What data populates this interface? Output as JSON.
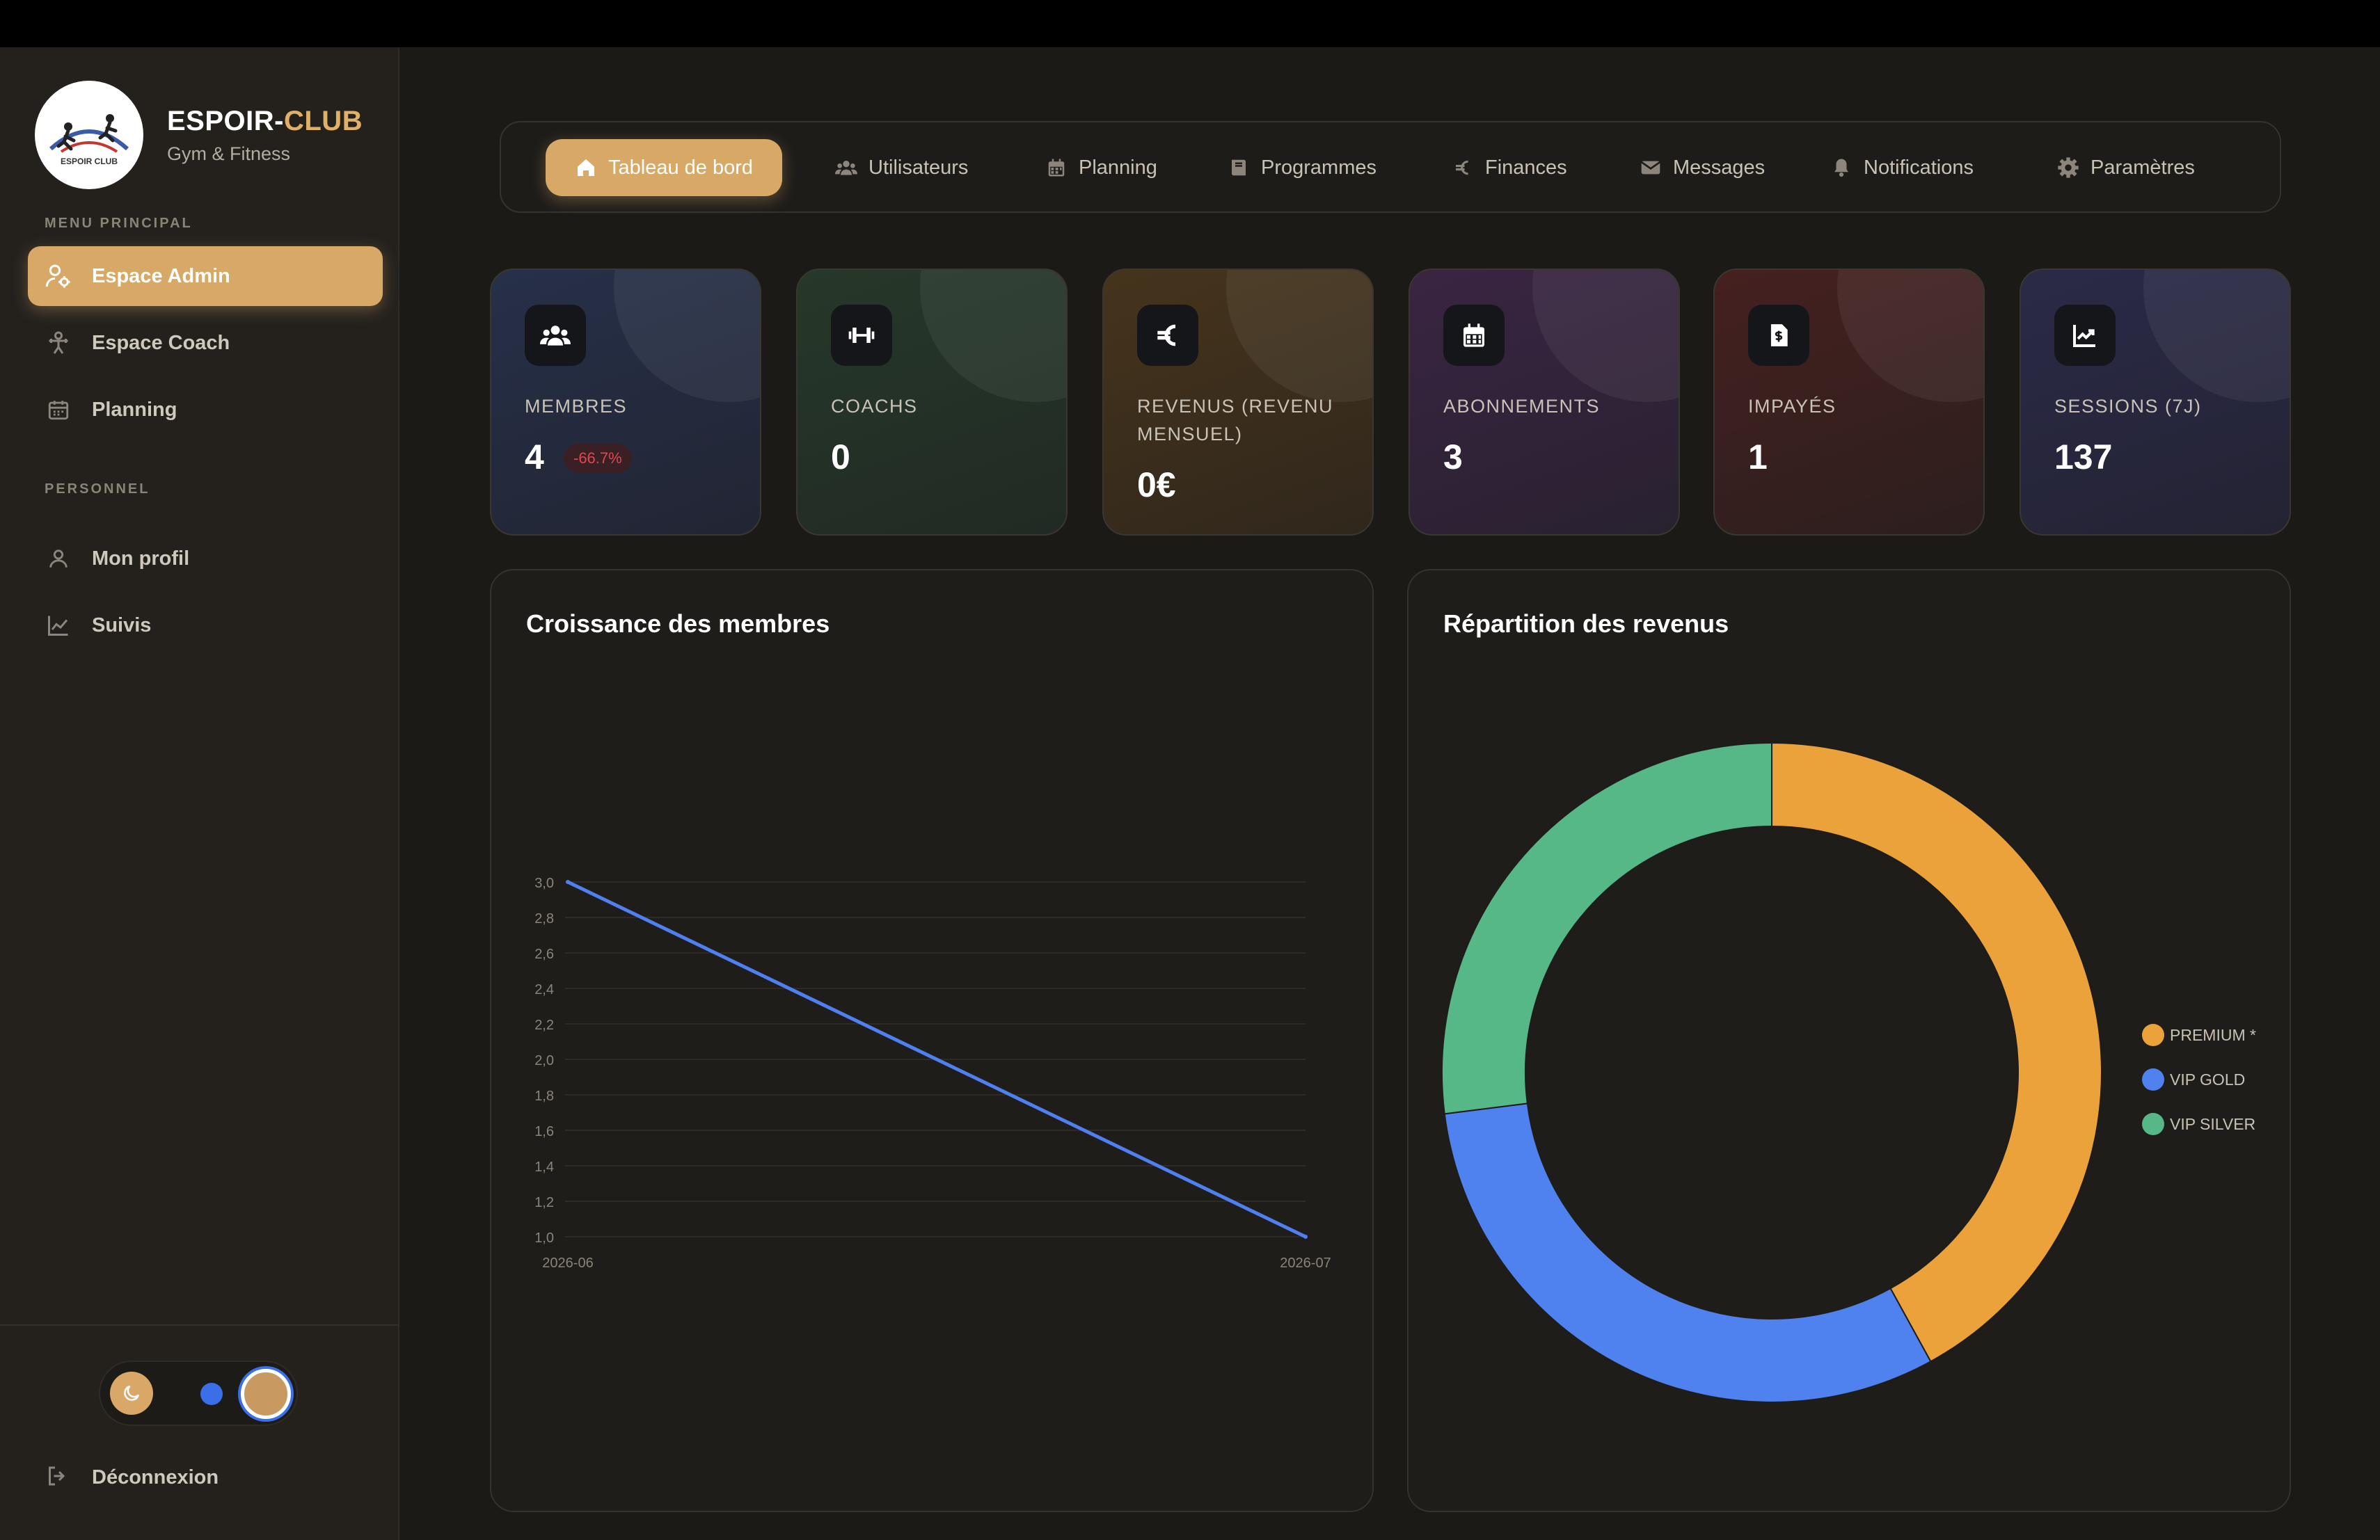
{
  "brand": {
    "name_part1": "ESPOIR-",
    "name_part2": "CLUB",
    "tagline": "Gym & Fitness",
    "logo_text": "ESPOIR CLUB"
  },
  "sidebar": {
    "section_main": "MENU PRINCIPAL",
    "section_personal": "PERSONNEL",
    "items": [
      {
        "label": "Espace Admin",
        "icon": "user-admin-icon",
        "active": true
      },
      {
        "label": "Espace Coach",
        "icon": "dumbbell-person-icon"
      },
      {
        "label": "Planning",
        "icon": "calendar-icon"
      },
      {
        "label": "Mon profil",
        "icon": "user-icon"
      },
      {
        "label": "Suivis",
        "icon": "chart-line-icon"
      }
    ],
    "logout": "Déconnexion"
  },
  "nav": {
    "tabs": [
      {
        "label": "Tableau de bord",
        "icon": "home-icon",
        "active": true
      },
      {
        "label": "Utilisateurs",
        "icon": "users-icon"
      },
      {
        "label": "Planning",
        "icon": "calendar-icon"
      },
      {
        "label": "Programmes",
        "icon": "book-icon"
      },
      {
        "label": "Finances",
        "icon": "euro-icon"
      },
      {
        "label": "Messages",
        "icon": "envelope-icon"
      },
      {
        "label": "Notifications",
        "icon": "bell-icon"
      },
      {
        "label": "Paramètres",
        "icon": "gear-icon"
      }
    ]
  },
  "stats": [
    {
      "label": "MEMBRES",
      "value": "4",
      "badge": "-66.7%",
      "icon": "users-icon",
      "color": "#25293a"
    },
    {
      "label": "COACHS",
      "value": "0",
      "icon": "dumbbell-icon",
      "color": "#232f28"
    },
    {
      "label": "REVENUS (REVENU MENSUEL)",
      "value": "0€",
      "icon": "euro-icon",
      "color": "#3a2e1f"
    },
    {
      "label": "ABONNEMENTS",
      "value": "3",
      "icon": "calendar-icon",
      "color": "#2e2234"
    },
    {
      "label": "IMPAYÉS",
      "value": "1",
      "icon": "invoice-icon",
      "color": "#321f1f"
    },
    {
      "label": "SESSIONS (7J)",
      "value": "137",
      "icon": "chart-up-icon",
      "color": "#242436"
    }
  ],
  "colors": {
    "accent": "#d7a866",
    "line": "#4f7ff0",
    "premium": "#eba23b",
    "vip_gold": "#4f82ee",
    "vip_silver": "#55b886"
  },
  "chart_data": [
    {
      "type": "line",
      "title": "Croissance des membres",
      "x": [
        "2026-06",
        "2026-07"
      ],
      "series": [
        {
          "values": [
            3,
            1
          ]
        }
      ],
      "ylim": [
        1.0,
        3.0
      ],
      "yticks": [
        "1,0",
        "1,2",
        "1,4",
        "1,6",
        "1,8",
        "2,0",
        "2,2",
        "2,4",
        "2,6",
        "2,8",
        "3,0"
      ],
      "grid": true
    },
    {
      "type": "pie",
      "donut": true,
      "title": "Répartition des revenus",
      "categories": [
        "PREMIUM *",
        "VIP GOLD",
        "VIP SILVER"
      ],
      "values": [
        42,
        31,
        27
      ],
      "legend": "right"
    }
  ]
}
